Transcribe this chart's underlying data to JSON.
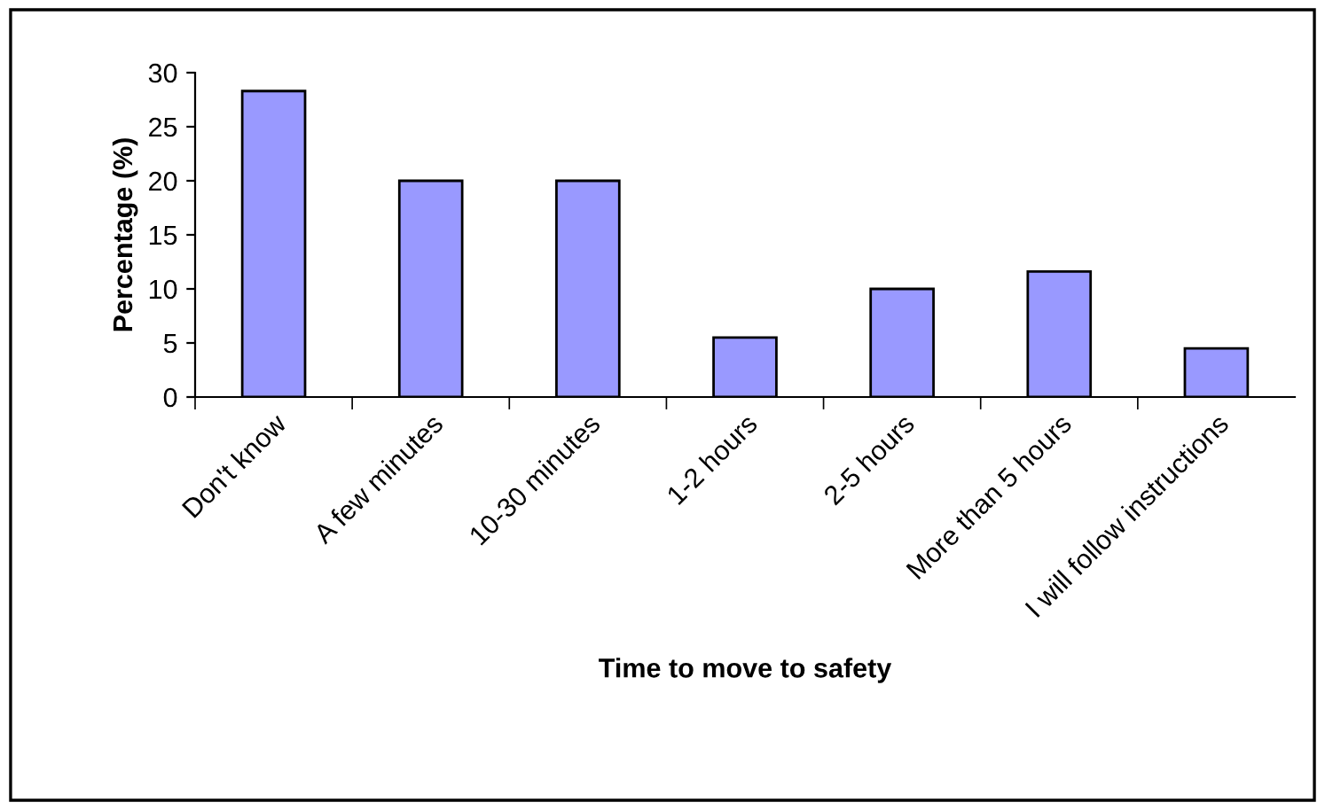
{
  "chart_data": {
    "type": "bar",
    "xlabel": "Time to move to safety",
    "ylabel": "Percentage (%)",
    "categories": [
      "Don't know",
      "A few minutes",
      "10-30 minutes",
      "1-2 hours",
      "2-5 hours",
      "More than 5 hours",
      "I will follow instructions"
    ],
    "values": [
      28.3,
      20,
      20,
      5.5,
      10,
      11.6,
      4.5
    ],
    "color": "#9999ff",
    "ylim": [
      0,
      30
    ],
    "yticks": [
      0,
      5,
      10,
      15,
      20,
      25,
      30
    ],
    "grid": false,
    "legend": false
  }
}
